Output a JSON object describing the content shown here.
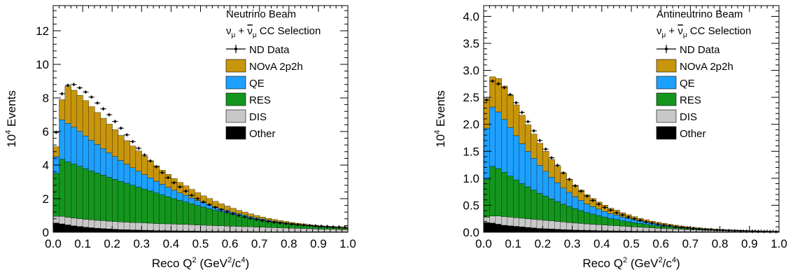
{
  "chart_data": [
    {
      "type": "bar",
      "title": "Neutrino Beam",
      "subtitle_parts": [
        "ν",
        "μ",
        " + ",
        "ν",
        "μ",
        " CC Selection"
      ],
      "xlabel_parts": [
        "Reco Q",
        "2",
        " (GeV",
        "2",
        "/c",
        "4",
        ")"
      ],
      "ylabel_parts": [
        "10",
        "4",
        " Events"
      ],
      "xlim": [
        0.0,
        1.0
      ],
      "ylim": [
        0,
        13.5
      ],
      "x_ticks": [
        0.0,
        0.1,
        0.2,
        0.3,
        0.4,
        0.5,
        0.6,
        0.7,
        0.8,
        0.9,
        1.0
      ],
      "x_tick_labels": [
        "0.0",
        "0.1",
        "0.2",
        "0.3",
        "0.4",
        "0.5",
        "0.6",
        "0.7",
        "0.8",
        "0.9",
        "1.0"
      ],
      "y_ticks": [
        0,
        2,
        4,
        6,
        8,
        10,
        12
      ],
      "y_tick_labels": [
        "0",
        "2",
        "4",
        "6",
        "8",
        "10",
        "12"
      ],
      "legend": [
        {
          "label": "ND Data",
          "kind": "data"
        },
        {
          "label": "NOvA 2p2h",
          "color": "#C8960C"
        },
        {
          "label": "QE",
          "color": "#1EA0FF"
        },
        {
          "label": "RES",
          "color": "#14961E"
        },
        {
          "label": "DIS",
          "color": "#C8C8C8"
        },
        {
          "label": "Other",
          "color": "#000000"
        }
      ],
      "legend_position": "top-right",
      "series": [
        {
          "name": "Other",
          "color": "#000000",
          "values": [
            0.55,
            0.5,
            0.44,
            0.38,
            0.34,
            0.3,
            0.27,
            0.24,
            0.22,
            0.2,
            0.18,
            0.16,
            0.15,
            0.14,
            0.13,
            0.12,
            0.11,
            0.1,
            0.095,
            0.09,
            0.085,
            0.08,
            0.075,
            0.07,
            0.065,
            0.06,
            0.058,
            0.055,
            0.052,
            0.05,
            0.048,
            0.046,
            0.044,
            0.042,
            0.04,
            0.038,
            0.036,
            0.035,
            0.034,
            0.033,
            0.032,
            0.031,
            0.03,
            0.029,
            0.028,
            0.027,
            0.026,
            0.025,
            0.024,
            0.023
          ]
        },
        {
          "name": "DIS",
          "color": "#C8C8C8",
          "values": [
            0.4,
            0.45,
            0.45,
            0.46,
            0.47,
            0.47,
            0.47,
            0.47,
            0.47,
            0.46,
            0.46,
            0.45,
            0.45,
            0.44,
            0.44,
            0.43,
            0.43,
            0.42,
            0.41,
            0.41,
            0.4,
            0.39,
            0.39,
            0.38,
            0.37,
            0.36,
            0.35,
            0.34,
            0.33,
            0.32,
            0.31,
            0.3,
            0.29,
            0.28,
            0.27,
            0.26,
            0.25,
            0.24,
            0.23,
            0.22,
            0.21,
            0.2,
            0.19,
            0.18,
            0.17,
            0.16,
            0.15,
            0.15,
            0.14,
            0.13
          ]
        },
        {
          "name": "RES",
          "color": "#14961E",
          "values": [
            2.55,
            3.4,
            3.3,
            3.22,
            3.12,
            3.02,
            2.92,
            2.82,
            2.72,
            2.62,
            2.52,
            2.42,
            2.32,
            2.22,
            2.12,
            2.02,
            1.92,
            1.82,
            1.72,
            1.62,
            1.52,
            1.43,
            1.34,
            1.25,
            1.16,
            1.08,
            1.0,
            0.92,
            0.85,
            0.78,
            0.71,
            0.65,
            0.59,
            0.53,
            0.48,
            0.43,
            0.38,
            0.34,
            0.3,
            0.27,
            0.24,
            0.21,
            0.19,
            0.17,
            0.15,
            0.13,
            0.12,
            0.1,
            0.09,
            0.08
          ]
        },
        {
          "name": "QE",
          "color": "#1EA0FF",
          "values": [
            1.0,
            2.35,
            2.3,
            2.2,
            2.08,
            1.95,
            1.82,
            1.7,
            1.58,
            1.46,
            1.35,
            1.24,
            1.14,
            1.04,
            0.95,
            0.86,
            0.78,
            0.7,
            0.63,
            0.56,
            0.5,
            0.44,
            0.39,
            0.34,
            0.3,
            0.26,
            0.23,
            0.2,
            0.17,
            0.15,
            0.13,
            0.11,
            0.1,
            0.08,
            0.07,
            0.06,
            0.05,
            0.05,
            0.04,
            0.04,
            0.03,
            0.03,
            0.03,
            0.02,
            0.02,
            0.02,
            0.02,
            0.02,
            0.01,
            0.01
          ]
        },
        {
          "name": "NOvA 2p2h",
          "color": "#C8960C",
          "values": [
            0.6,
            1.2,
            2.2,
            2.2,
            2.15,
            2.1,
            2.0,
            1.9,
            1.8,
            1.7,
            1.6,
            1.5,
            1.4,
            1.3,
            1.2,
            1.1,
            1.0,
            0.92,
            0.84,
            0.77,
            0.7,
            0.63,
            0.57,
            0.51,
            0.46,
            0.41,
            0.37,
            0.33,
            0.29,
            0.26,
            0.23,
            0.2,
            0.18,
            0.16,
            0.14,
            0.12,
            0.11,
            0.1,
            0.09,
            0.08,
            0.07,
            0.06,
            0.06,
            0.05,
            0.05,
            0.04,
            0.04,
            0.04,
            0.03,
            0.03
          ]
        },
        {
          "name": "ND Data",
          "kind": "data",
          "values": [
            5.95,
            8.25,
            8.75,
            8.8,
            8.6,
            8.35,
            8.05,
            7.7,
            7.35,
            7.0,
            6.6,
            6.2,
            5.8,
            5.4,
            5.0,
            4.6,
            4.25,
            3.9,
            3.55,
            3.25,
            2.95,
            2.7,
            2.45,
            2.2,
            2.0,
            1.8,
            1.64,
            1.48,
            1.34,
            1.22,
            1.1,
            1.0,
            0.91,
            0.83,
            0.76,
            0.7,
            0.64,
            0.59,
            0.55,
            0.51,
            0.48,
            0.45,
            0.42,
            0.4,
            0.38,
            0.36,
            0.34,
            0.32,
            0.31,
            0.3
          ]
        }
      ]
    },
    {
      "type": "bar",
      "title": "Antineutrino Beam",
      "subtitle_parts": [
        "ν",
        "μ",
        " + ",
        "ν",
        "μ",
        " CC Selection"
      ],
      "xlabel_parts": [
        "Reco Q",
        "2",
        " (GeV",
        "2",
        "/c",
        "4",
        ")"
      ],
      "ylabel_parts": [
        "10",
        "4",
        " Events"
      ],
      "xlim": [
        0.0,
        1.0
      ],
      "ylim": [
        0,
        4.2
      ],
      "x_ticks": [
        0.0,
        0.1,
        0.2,
        0.3,
        0.4,
        0.5,
        0.6,
        0.7,
        0.8,
        0.9,
        1.0
      ],
      "x_tick_labels": [
        "0.0",
        "0.1",
        "0.2",
        "0.3",
        "0.4",
        "0.5",
        "0.6",
        "0.7",
        "0.8",
        "0.9",
        "1.0"
      ],
      "y_ticks": [
        0.0,
        0.5,
        1.0,
        1.5,
        2.0,
        2.5,
        3.0,
        3.5,
        4.0
      ],
      "y_tick_labels": [
        "0.0",
        "0.5",
        "1.0",
        "1.5",
        "2.0",
        "2.5",
        "3.0",
        "3.5",
        "4.0"
      ],
      "legend": [
        {
          "label": "ND Data",
          "kind": "data"
        },
        {
          "label": "NOvA 2p2h",
          "color": "#C8960C"
        },
        {
          "label": "QE",
          "color": "#1EA0FF"
        },
        {
          "label": "RES",
          "color": "#14961E"
        },
        {
          "label": "DIS",
          "color": "#C8C8C8"
        },
        {
          "label": "Other",
          "color": "#000000"
        }
      ],
      "legend_position": "top-right",
      "series": [
        {
          "name": "Other",
          "color": "#000000",
          "values": [
            0.18,
            0.17,
            0.15,
            0.13,
            0.12,
            0.11,
            0.1,
            0.09,
            0.08,
            0.07,
            0.065,
            0.06,
            0.055,
            0.05,
            0.045,
            0.04,
            0.038,
            0.035,
            0.032,
            0.03,
            0.028,
            0.026,
            0.024,
            0.022,
            0.02,
            0.019,
            0.018,
            0.017,
            0.016,
            0.015,
            0.014,
            0.013,
            0.012,
            0.011,
            0.01,
            0.01,
            0.009,
            0.009,
            0.008,
            0.008,
            0.007,
            0.007,
            0.006,
            0.006,
            0.005,
            0.005,
            0.005,
            0.004,
            0.004,
            0.004
          ]
        },
        {
          "name": "DIS",
          "color": "#C8C8C8",
          "values": [
            0.1,
            0.13,
            0.15,
            0.16,
            0.16,
            0.16,
            0.16,
            0.16,
            0.16,
            0.16,
            0.155,
            0.15,
            0.145,
            0.14,
            0.135,
            0.13,
            0.125,
            0.12,
            0.115,
            0.11,
            0.105,
            0.1,
            0.095,
            0.09,
            0.085,
            0.08,
            0.075,
            0.07,
            0.065,
            0.06,
            0.056,
            0.052,
            0.048,
            0.044,
            0.04,
            0.036,
            0.033,
            0.03,
            0.027,
            0.024,
            0.022,
            0.02,
            0.018,
            0.016,
            0.014,
            0.012,
            0.011,
            0.01,
            0.009,
            0.008
          ]
        },
        {
          "name": "RES",
          "color": "#14961E",
          "values": [
            0.7,
            0.92,
            0.88,
            0.82,
            0.76,
            0.7,
            0.64,
            0.59,
            0.54,
            0.49,
            0.45,
            0.41,
            0.37,
            0.33,
            0.3,
            0.27,
            0.24,
            0.21,
            0.19,
            0.17,
            0.15,
            0.13,
            0.12,
            0.1,
            0.09,
            0.08,
            0.07,
            0.06,
            0.05,
            0.045,
            0.04,
            0.035,
            0.03,
            0.026,
            0.022,
            0.019,
            0.016,
            0.014,
            0.012,
            0.01,
            0.009,
            0.008,
            0.007,
            0.006,
            0.005,
            0.005,
            0.004,
            0.004,
            0.003,
            0.003
          ]
        },
        {
          "name": "QE",
          "color": "#1EA0FF",
          "values": [
            0.95,
            1.1,
            1.05,
            0.98,
            0.9,
            0.82,
            0.74,
            0.66,
            0.59,
            0.52,
            0.46,
            0.4,
            0.35,
            0.3,
            0.26,
            0.22,
            0.19,
            0.16,
            0.14,
            0.12,
            0.1,
            0.09,
            0.08,
            0.07,
            0.06,
            0.05,
            0.045,
            0.04,
            0.035,
            0.03,
            0.026,
            0.022,
            0.019,
            0.016,
            0.014,
            0.012,
            0.01,
            0.009,
            0.008,
            0.007,
            0.006,
            0.005,
            0.005,
            0.004,
            0.004,
            0.003,
            0.003,
            0.003,
            0.002,
            0.002
          ]
        },
        {
          "name": "NOvA 2p2h",
          "color": "#C8960C",
          "values": [
            0.55,
            0.56,
            0.62,
            0.62,
            0.6,
            0.57,
            0.53,
            0.49,
            0.45,
            0.41,
            0.37,
            0.33,
            0.3,
            0.27,
            0.24,
            0.21,
            0.19,
            0.17,
            0.15,
            0.13,
            0.12,
            0.1,
            0.09,
            0.08,
            0.07,
            0.06,
            0.05,
            0.045,
            0.04,
            0.035,
            0.03,
            0.026,
            0.022,
            0.019,
            0.016,
            0.014,
            0.012,
            0.01,
            0.009,
            0.008,
            0.007,
            0.006,
            0.005,
            0.005,
            0.004,
            0.004,
            0.003,
            0.003,
            0.002,
            0.002
          ]
        },
        {
          "name": "ND Data",
          "kind": "data",
          "values": [
            2.45,
            2.8,
            2.75,
            2.68,
            2.55,
            2.4,
            2.22,
            2.05,
            1.88,
            1.7,
            1.54,
            1.38,
            1.24,
            1.1,
            0.98,
            0.86,
            0.76,
            0.67,
            0.59,
            0.52,
            0.46,
            0.41,
            0.36,
            0.32,
            0.28,
            0.25,
            0.22,
            0.19,
            0.17,
            0.15,
            0.13,
            0.12,
            0.1,
            0.09,
            0.08,
            0.07,
            0.06,
            0.05,
            0.05,
            0.04,
            0.035,
            0.03,
            0.025,
            0.022,
            0.02,
            0.018,
            0.015,
            0.013,
            0.011,
            0.01
          ]
        }
      ]
    }
  ]
}
